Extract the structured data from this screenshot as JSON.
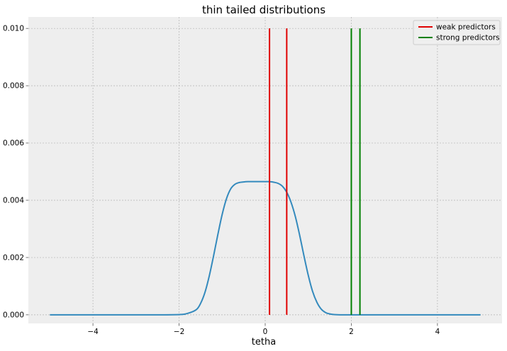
{
  "chart_data": {
    "type": "line",
    "title": "thin tailed distributions",
    "xlabel": "tetha",
    "ylabel": "",
    "xlim": [
      -5.5,
      5.5
    ],
    "ylim": [
      -0.0003,
      0.0104
    ],
    "xticks": [
      -4,
      -2,
      0,
      2,
      4
    ],
    "xtick_labels": [
      "−4",
      "−2",
      "0",
      "2",
      "4"
    ],
    "yticks": [
      0.0,
      0.002,
      0.004,
      0.006,
      0.008,
      0.01
    ],
    "ytick_labels": [
      "0.000",
      "0.002",
      "0.004",
      "0.006",
      "0.008",
      "0.010"
    ],
    "grid": true,
    "legend_position": "top-right",
    "curve": {
      "color": "#348abd",
      "x": [
        -5.0,
        -4.0,
        -3.0,
        -2.5,
        -2.0,
        -1.8,
        -1.6,
        -1.5,
        -1.4,
        -1.3,
        -1.2,
        -1.1,
        -1.0,
        -0.9,
        -0.8,
        -0.7,
        -0.6,
        -0.5,
        -0.4,
        -0.3,
        -0.2,
        -0.1,
        0.0,
        0.1,
        0.2,
        0.3,
        0.4,
        0.5,
        0.6,
        0.7,
        0.8,
        0.9,
        1.0,
        1.1,
        1.2,
        1.3,
        1.4,
        1.5,
        1.6,
        1.8,
        2.0,
        2.5,
        3.0,
        4.0,
        5.0
      ],
      "y": [
        0.0,
        0.0,
        0.0,
        0.0,
        1e-05,
        5e-05,
        0.00018,
        0.0004,
        0.00078,
        0.00135,
        0.00205,
        0.0028,
        0.0035,
        0.00405,
        0.0044,
        0.00456,
        0.00462,
        0.00464,
        0.00465,
        0.00465,
        0.00465,
        0.00465,
        0.00465,
        0.00465,
        0.00463,
        0.00459,
        0.00449,
        0.00428,
        0.00393,
        0.00343,
        0.00278,
        0.00206,
        0.00138,
        0.00082,
        0.00044,
        0.0002,
        8e-05,
        3e-05,
        1e-05,
        0.0,
        0.0,
        0.0,
        0.0,
        0.0,
        0.0
      ]
    },
    "vlines": [
      {
        "x": 0.1,
        "color": "#e00000",
        "ymin": 0.0,
        "ymax": 0.01
      },
      {
        "x": 0.5,
        "color": "#e00000",
        "ymin": 0.0,
        "ymax": 0.01
      },
      {
        "x": 2.0,
        "color": "#008000",
        "ymin": 0.0,
        "ymax": 0.01
      },
      {
        "x": 2.2,
        "color": "#008000",
        "ymin": 0.0,
        "ymax": 0.01
      }
    ],
    "legend": [
      {
        "label": "weak predictors",
        "color": "#e00000"
      },
      {
        "label": "strong predictors",
        "color": "#008000"
      }
    ]
  }
}
